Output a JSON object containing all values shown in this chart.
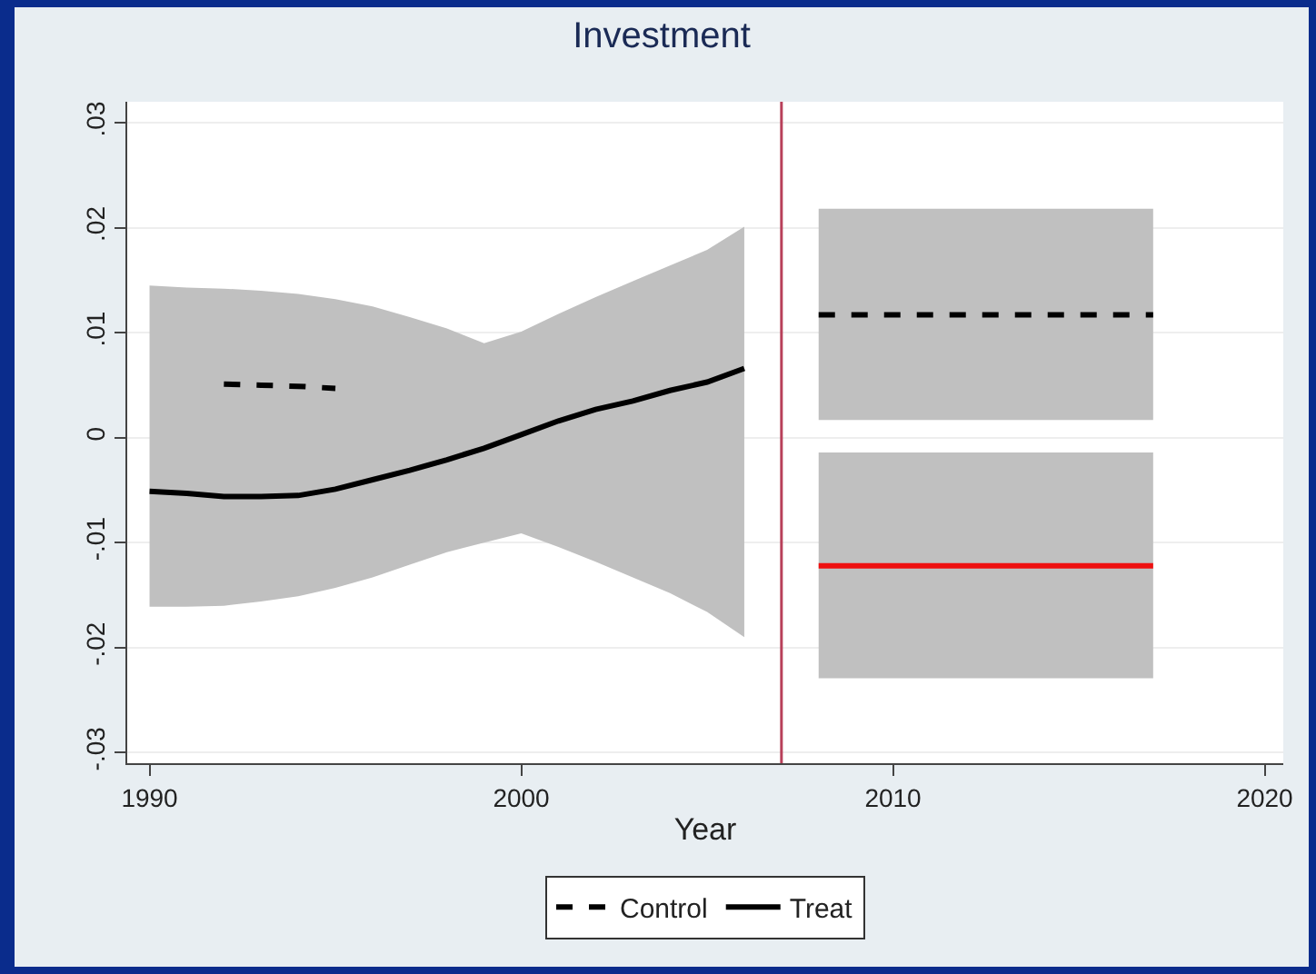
{
  "chart_data": {
    "type": "line",
    "title": "Investment",
    "xlabel": "Year",
    "xlim": [
      1989.4,
      2020.5
    ],
    "xticks": [
      1990,
      2000,
      2010,
      2020
    ],
    "ylim": [
      -0.031,
      0.032
    ],
    "yticks": [
      {
        "value": -0.03,
        "label": "-.03"
      },
      {
        "value": -0.02,
        "label": "-.02"
      },
      {
        "value": -0.01,
        "label": "-.01"
      },
      0,
      {
        "value": 0.01,
        "label": ".01"
      },
      {
        "value": 0.02,
        "label": ".02"
      },
      {
        "value": 0.03,
        "label": ".03"
      }
    ],
    "grid": "y",
    "legend": "bottom",
    "marker": "none",
    "series": [
      {
        "name": "Control",
        "color": "#000000",
        "line_style": "dashed",
        "x": [
          1992,
          1993,
          1994,
          1995
        ],
        "values": [
          0.0051,
          0.005,
          0.0049,
          0.0047
        ]
      },
      {
        "name": "Treat",
        "color": "#000000",
        "line_style": "solid",
        "x": [
          1990,
          1991,
          1992,
          1993,
          1994,
          1995,
          1996,
          1997,
          1998,
          1999,
          2000,
          2001,
          2002,
          2003,
          2004,
          2005,
          2006
        ],
        "values": [
          -0.0051,
          -0.0053,
          -0.0056,
          -0.0056,
          -0.0055,
          -0.0049,
          -0.004,
          -0.0031,
          -0.0021,
          -0.001,
          0.0003,
          0.0016,
          0.0027,
          0.0035,
          0.0045,
          0.0053,
          0.0066
        ],
        "lower": [
          -0.0161,
          -0.0161,
          -0.016,
          -0.0156,
          -0.0151,
          -0.0143,
          -0.0133,
          -0.0121,
          -0.0109,
          -0.01,
          -0.0091,
          -0.0104,
          -0.0118,
          -0.0133,
          -0.0148,
          -0.0166,
          -0.019
        ],
        "upper": [
          0.0145,
          0.0143,
          0.0142,
          0.014,
          0.0137,
          0.0132,
          0.0125,
          0.0115,
          0.0104,
          0.009,
          0.0101,
          0.0118,
          0.0134,
          0.0149,
          0.0164,
          0.0179,
          0.0201
        ]
      },
      {
        "color": "#000000",
        "line_style": "dashed",
        "x": [
          2008,
          2017
        ],
        "values": [
          0.0117,
          0.0117
        ],
        "lower": [
          0.0017,
          0.0017
        ],
        "upper": [
          0.0218,
          0.0218
        ]
      },
      {
        "color": "#ee1111",
        "line_style": "solid",
        "x": [
          2008,
          2017
        ],
        "values": [
          -0.0122,
          -0.0122
        ],
        "lower": [
          -0.0229,
          -0.0229
        ],
        "upper": [
          -0.0014,
          -0.0014
        ]
      }
    ],
    "ref_lines": [
      {
        "axis": "x",
        "value": 2007,
        "color": "#b8405a"
      }
    ]
  }
}
